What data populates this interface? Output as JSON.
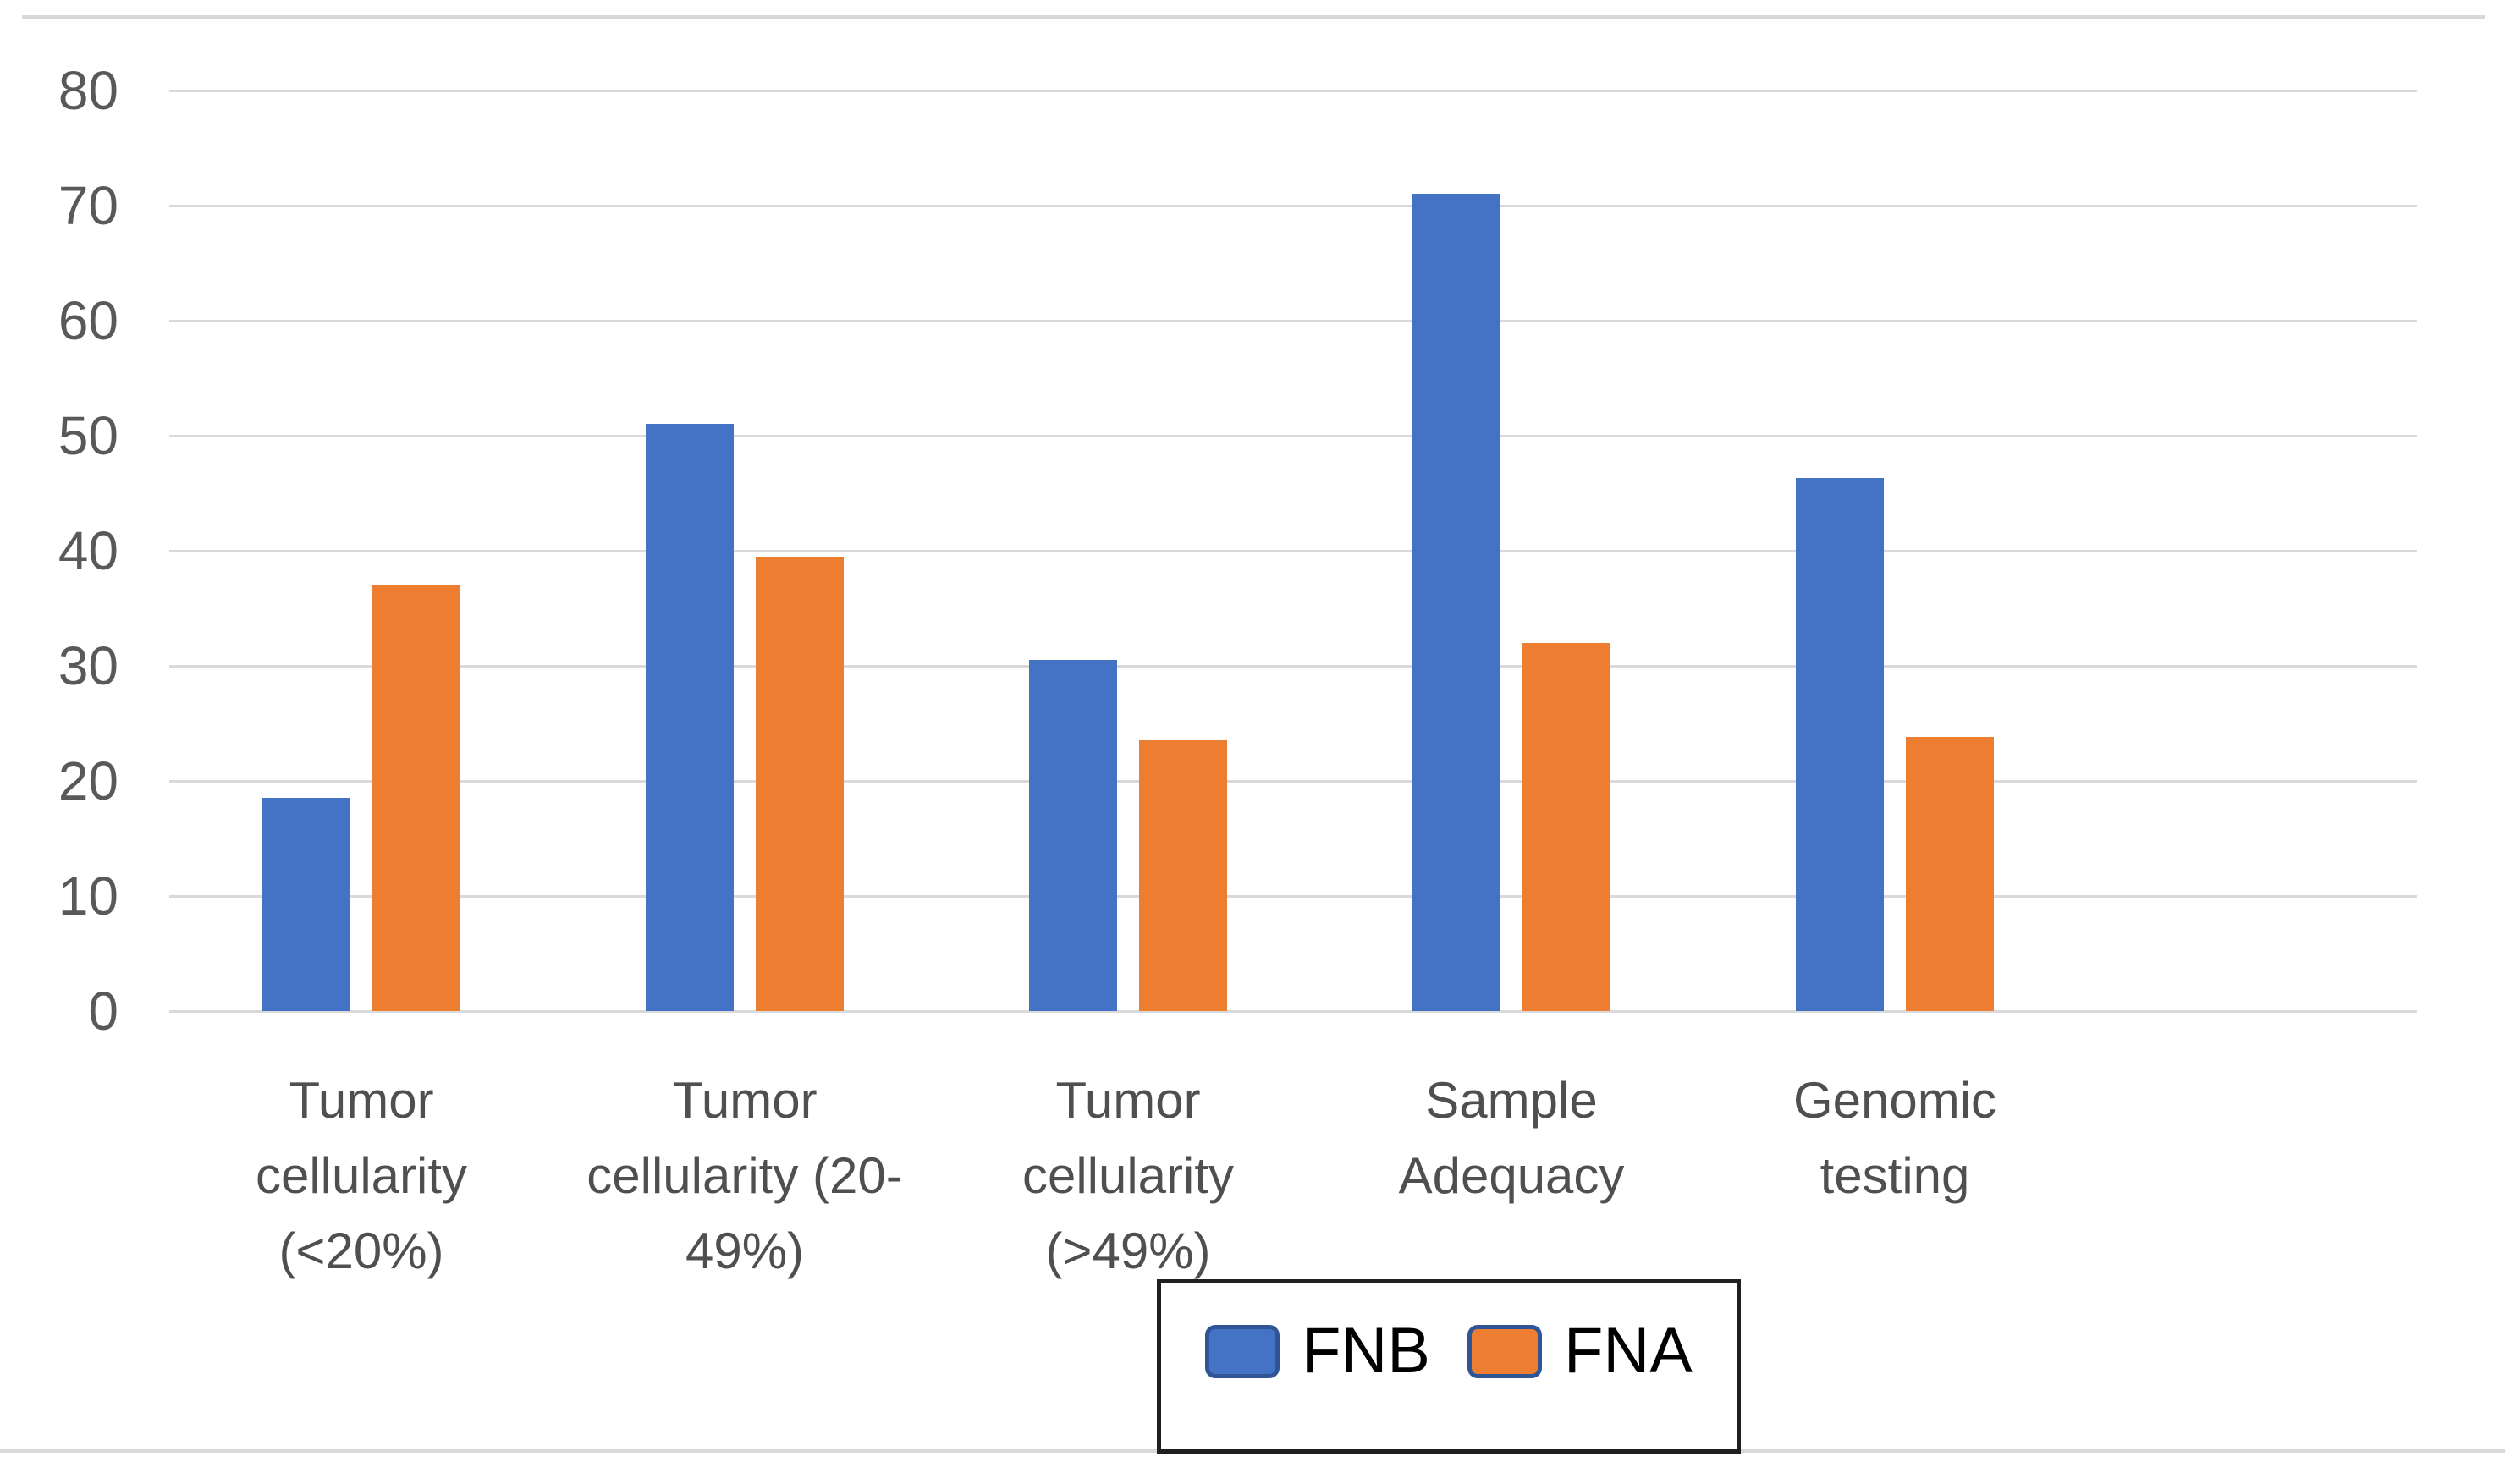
{
  "figure": {
    "type_label": "grouped column chart",
    "legend_position": "bottom"
  },
  "chart_data": {
    "type": "bar",
    "title": "",
    "xlabel": "",
    "ylabel": "",
    "ylim": [
      0,
      80
    ],
    "grid": true,
    "y_axis": {
      "ticks": [
        0,
        10,
        20,
        30,
        40,
        50,
        60,
        70,
        80
      ]
    },
    "categories": [
      "Tumor cellularity (<20%)",
      "Tumor cellularity (20-49%)",
      "Tumor cellularity (>49%)",
      "Sample Adequacy",
      "Genomic testing"
    ],
    "category_label_lines": [
      [
        "Tumor",
        "cellularity",
        "(<20%)"
      ],
      [
        "Tumor",
        "cellularity (20-",
        "49%)"
      ],
      [
        "Tumor",
        "cellularity",
        "(>49%)"
      ],
      [
        "Sample",
        "Adequacy"
      ],
      [
        "Genomic",
        "testing"
      ]
    ],
    "series": [
      {
        "name": "FNB",
        "color": "#4472c4",
        "values": [
          18.5,
          51,
          30.5,
          71,
          46.3
        ]
      },
      {
        "name": "FNA",
        "color": "#ed7d31",
        "values": [
          37,
          39.5,
          23.5,
          32,
          23.8
        ]
      }
    ],
    "legend": {
      "entries": [
        "FNB",
        "FNA"
      ],
      "swatch_border_color": "#2f5597",
      "box_border_color": "#1f1f1f"
    },
    "colors": {
      "gridline": "#d9d9d9",
      "tick_label": "#595959",
      "category_label": "#4f4f4f",
      "frame_rule": "#d8d8d8"
    }
  }
}
